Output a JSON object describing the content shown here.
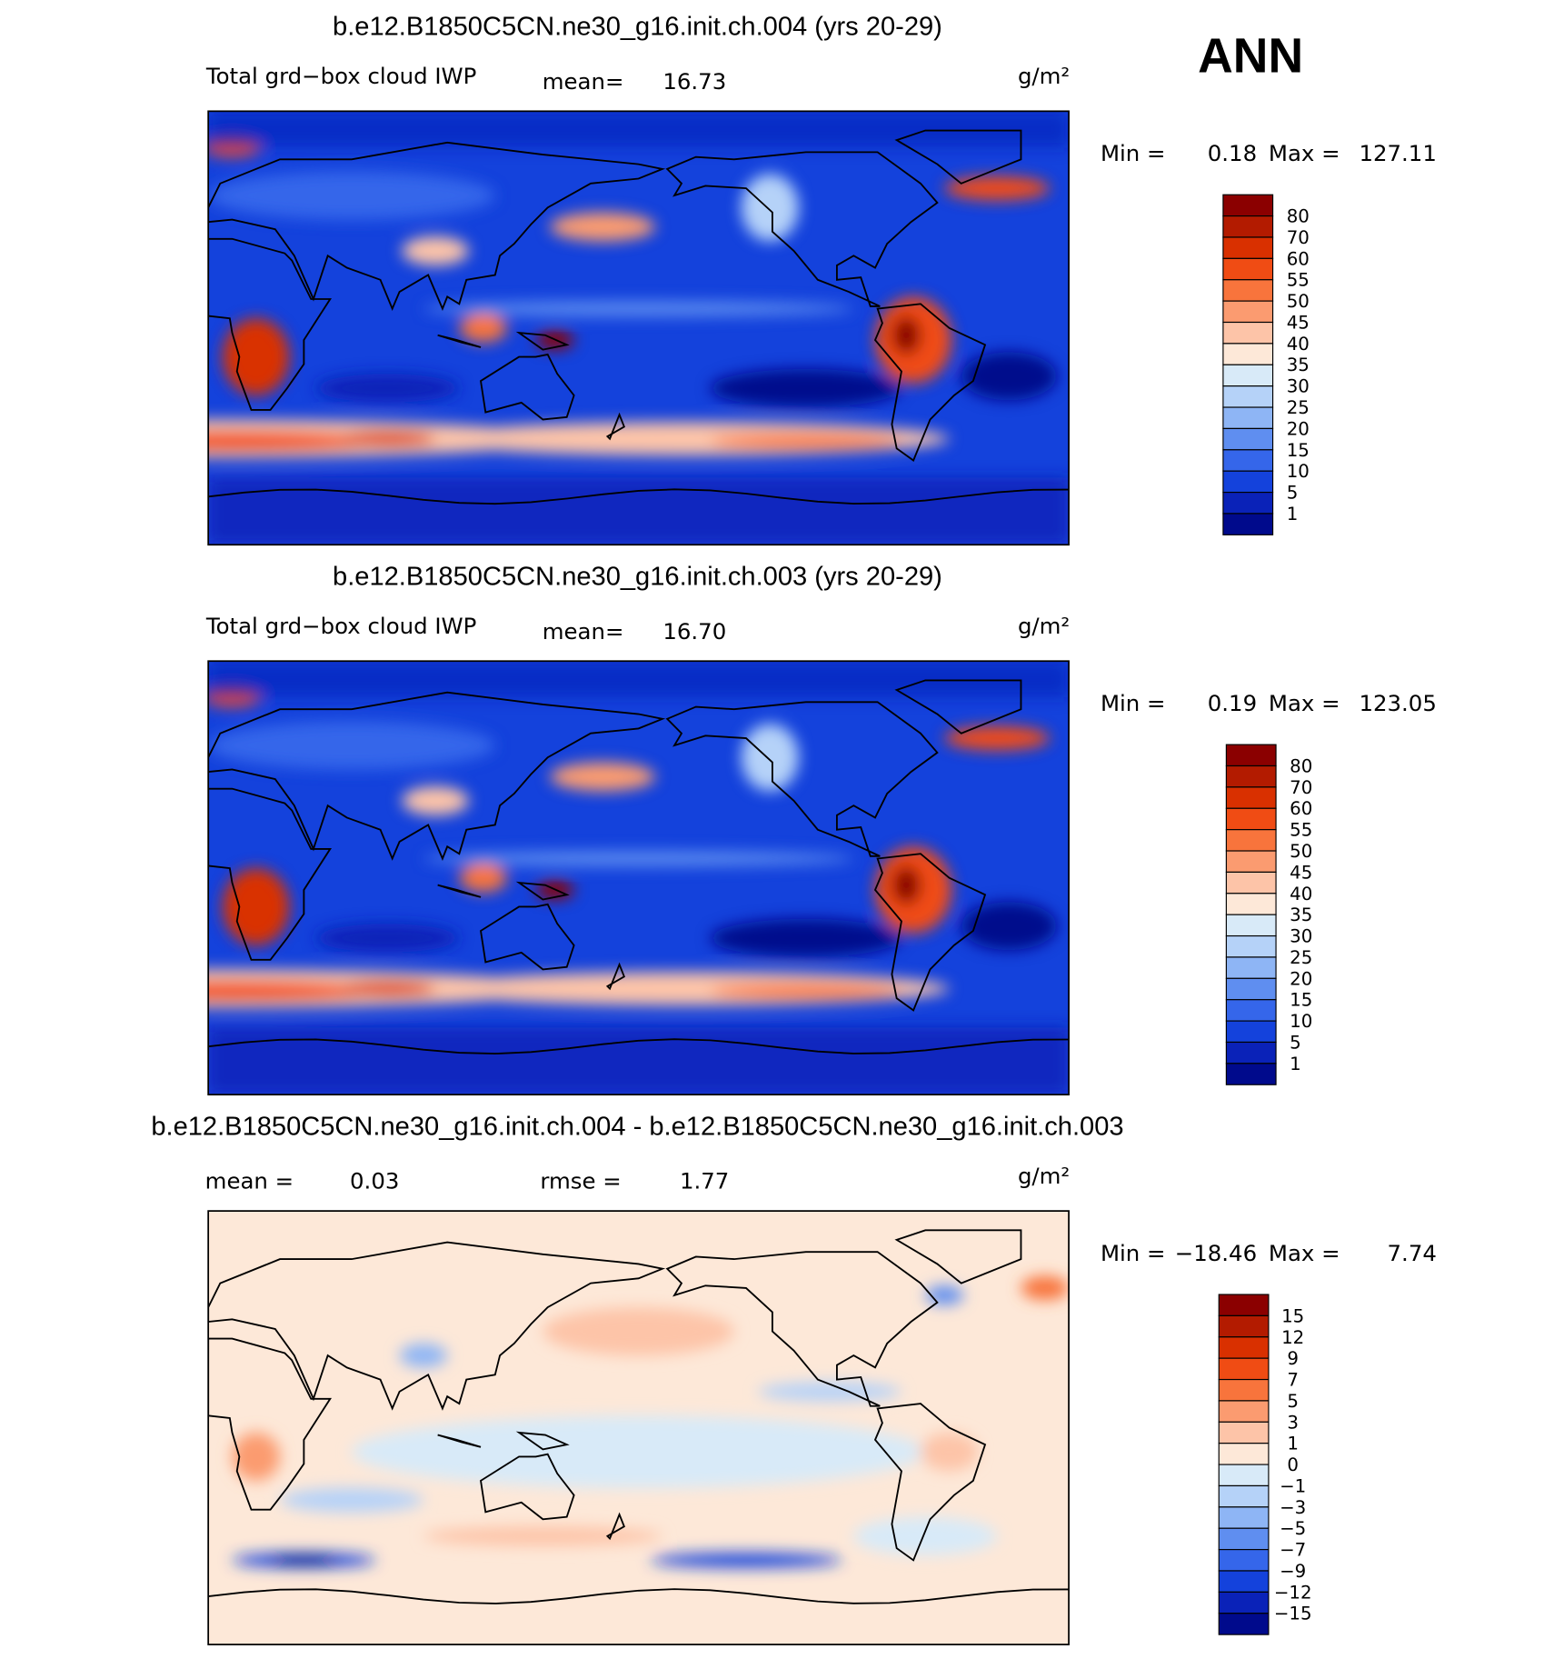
{
  "label": "ANN",
  "panels": [
    {
      "title": "b.e12.B1850C5CN.ne30_g16.init.ch.004 (yrs 20-29)",
      "variable": "Total grd−box cloud IWP",
      "mean_label": "mean=",
      "mean": "16.73",
      "units": "g/m²",
      "min_label": "Min =",
      "min": "0.18",
      "max_label": "Max =",
      "max": "127.11",
      "colorbar": [
        "80",
        "70",
        "60",
        "55",
        "50",
        "45",
        "40",
        "35",
        "30",
        "25",
        "20",
        "15",
        "10",
        "5",
        "1"
      ]
    },
    {
      "title": "b.e12.B1850C5CN.ne30_g16.init.ch.003 (yrs 20-29)",
      "variable": "Total grd−box cloud IWP",
      "mean_label": "mean=",
      "mean": "16.70",
      "units": "g/m²",
      "min_label": "Min =",
      "min": "0.19",
      "max_label": "Max =",
      "max": "123.05",
      "colorbar": [
        "80",
        "70",
        "60",
        "55",
        "50",
        "45",
        "40",
        "35",
        "30",
        "25",
        "20",
        "15",
        "10",
        "5",
        "1"
      ]
    },
    {
      "title": "b.e12.B1850C5CN.ne30_g16.init.ch.004 - b.e12.B1850C5CN.ne30_g16.init.ch.003",
      "mean_label": "mean =",
      "mean": "0.03",
      "rmse_label": "rmse =",
      "rmse": "1.77",
      "units": "g/m²",
      "min_label": "Min =",
      "min": "−18.46",
      "max_label": "Max =",
      "max": "7.74",
      "colorbar": [
        "15",
        "12",
        "9",
        "7",
        "5",
        "3",
        "1",
        "0",
        "−1",
        "−3",
        "−5",
        "−7",
        "−9",
        "−12",
        "−15"
      ]
    }
  ]
}
